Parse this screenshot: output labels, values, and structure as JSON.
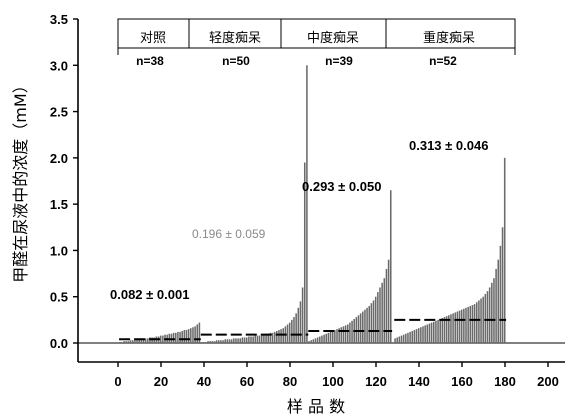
{
  "chart_data": {
    "type": "bar",
    "xlabel": "样 品 数",
    "ylabel": "甲醛在尿液中的浓度（mM）",
    "xlim": [
      0,
      200
    ],
    "ylim": [
      0,
      3.5
    ],
    "xticks": [
      "0",
      "20",
      "40",
      "60",
      "80",
      "100",
      "120",
      "140",
      "160",
      "180",
      "200"
    ],
    "yticks": [
      "0.0",
      "0.5",
      "1.0",
      "1.5",
      "2.0",
      "2.5",
      "3.0",
      "3.5"
    ],
    "grid": false,
    "groups": [
      {
        "label": "对照",
        "n_label": "n=38",
        "x_start": 1,
        "count": 38,
        "mean": 0.04,
        "annotation": "0.082 ± 0.001",
        "annotation_style": "bold"
      },
      {
        "label": "轻度痴呆",
        "n_label": "n=50",
        "x_start": 39,
        "count": 50,
        "mean": 0.09,
        "annotation": "0.196 ± 0.059",
        "annotation_style": "light"
      },
      {
        "label": "中度痴呆",
        "n_label": "n=39",
        "x_start": 89,
        "count": 39,
        "mean": 0.13,
        "annotation": "0.293 ± 0.050",
        "annotation_style": "bold"
      },
      {
        "label": "重度痴呆",
        "n_label": "n=52",
        "x_start": 129,
        "count": 52,
        "mean": 0.25,
        "annotation": "0.313 ± 0.046",
        "annotation_style": "bold"
      }
    ],
    "series": [
      {
        "group": "对照",
        "values": [
          0.01,
          0.01,
          0.02,
          0.02,
          0.02,
          0.03,
          0.03,
          0.03,
          0.04,
          0.04,
          0.04,
          0.05,
          0.05,
          0.05,
          0.06,
          0.06,
          0.06,
          0.07,
          0.07,
          0.08,
          0.08,
          0.09,
          0.09,
          0.1,
          0.1,
          0.11,
          0.11,
          0.12,
          0.12,
          0.13,
          0.14,
          0.14,
          0.15,
          0.16,
          0.17,
          0.18,
          0.2,
          0.22
        ]
      },
      {
        "group": "轻度痴呆",
        "values": [
          0.01,
          0.01,
          0.01,
          0.02,
          0.02,
          0.02,
          0.02,
          0.03,
          0.03,
          0.03,
          0.03,
          0.04,
          0.04,
          0.04,
          0.04,
          0.05,
          0.05,
          0.05,
          0.05,
          0.06,
          0.06,
          0.06,
          0.07,
          0.07,
          0.07,
          0.08,
          0.08,
          0.08,
          0.09,
          0.09,
          0.1,
          0.1,
          0.11,
          0.11,
          0.12,
          0.13,
          0.14,
          0.15,
          0.16,
          0.18,
          0.2,
          0.22,
          0.25,
          0.28,
          0.32,
          0.38,
          0.45,
          0.6,
          1.95,
          3.0
        ]
      },
      {
        "group": "中度痴呆",
        "values": [
          0.02,
          0.03,
          0.04,
          0.05,
          0.06,
          0.07,
          0.08,
          0.09,
          0.1,
          0.11,
          0.12,
          0.13,
          0.14,
          0.15,
          0.16,
          0.17,
          0.18,
          0.19,
          0.2,
          0.22,
          0.24,
          0.26,
          0.28,
          0.3,
          0.32,
          0.34,
          0.36,
          0.38,
          0.4,
          0.43,
          0.46,
          0.5,
          0.55,
          0.6,
          0.65,
          0.7,
          0.8,
          0.9,
          1.65
        ]
      },
      {
        "group": "重度痴呆",
        "values": [
          0.05,
          0.06,
          0.07,
          0.08,
          0.09,
          0.1,
          0.11,
          0.12,
          0.13,
          0.14,
          0.15,
          0.16,
          0.17,
          0.18,
          0.19,
          0.2,
          0.21,
          0.22,
          0.23,
          0.24,
          0.25,
          0.26,
          0.27,
          0.28,
          0.29,
          0.3,
          0.31,
          0.32,
          0.33,
          0.34,
          0.35,
          0.36,
          0.37,
          0.38,
          0.39,
          0.4,
          0.41,
          0.42,
          0.44,
          0.46,
          0.48,
          0.5,
          0.53,
          0.56,
          0.6,
          0.65,
          0.7,
          0.8,
          0.9,
          1.05,
          1.25,
          2.0
        ]
      }
    ]
  }
}
